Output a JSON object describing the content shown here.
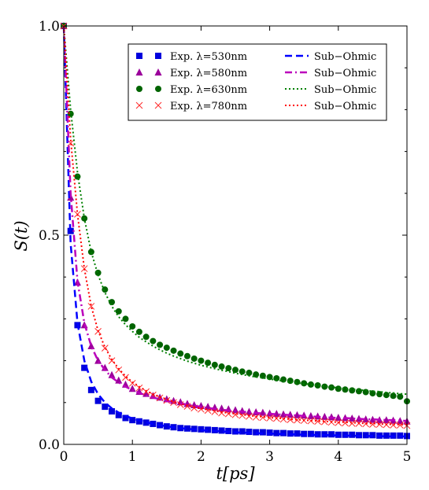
{
  "chart_data": {
    "type": "scatter",
    "xlabel": "t[ps]",
    "ylabel": "S(t)",
    "xlim": [
      0,
      5
    ],
    "ylim": [
      0,
      1
    ],
    "xticks": [
      {
        "v": 0,
        "label": "0"
      },
      {
        "v": 1,
        "label": "1"
      },
      {
        "v": 2,
        "label": "2"
      },
      {
        "v": 3,
        "label": "3"
      },
      {
        "v": 4,
        "label": "4"
      },
      {
        "v": 5,
        "label": "5"
      }
    ],
    "yticks": [
      {
        "v": 0,
        "label": "0.0"
      },
      {
        "v": 0.5,
        "label": "0.5"
      },
      {
        "v": 1,
        "label": "1.0"
      }
    ],
    "grid": false,
    "legend_position": "top-right",
    "x": [
      0.0,
      0.1,
      0.2,
      0.3,
      0.4,
      0.5,
      0.6,
      0.7,
      0.8,
      0.9,
      1.0,
      1.1,
      1.2,
      1.3,
      1.4,
      1.5,
      1.6,
      1.7,
      1.8,
      1.9,
      2.0,
      2.1,
      2.2,
      2.3,
      2.4,
      2.5,
      2.6,
      2.7,
      2.8,
      2.9,
      3.0,
      3.1,
      3.2,
      3.3,
      3.4,
      3.5,
      3.6,
      3.7,
      3.8,
      3.9,
      4.0,
      4.1,
      4.2,
      4.3,
      4.4,
      4.5,
      4.6,
      4.7,
      4.8,
      4.9,
      5.0
    ],
    "series": [
      {
        "name": "Exp. λ=530nm",
        "marker": "square",
        "color": "#0000dd",
        "values": [
          1.0,
          0.51,
          0.285,
          0.183,
          0.13,
          0.104,
          0.09,
          0.079,
          0.07,
          0.063,
          0.058,
          0.055,
          0.052,
          0.049,
          0.046,
          0.043,
          0.041,
          0.039,
          0.038,
          0.037,
          0.036,
          0.035,
          0.034,
          0.033,
          0.032,
          0.031,
          0.031,
          0.03,
          0.029,
          0.029,
          0.028,
          0.027,
          0.027,
          0.026,
          0.026,
          0.025,
          0.025,
          0.024,
          0.024,
          0.024,
          0.023,
          0.023,
          0.023,
          0.022,
          0.022,
          0.022,
          0.021,
          0.021,
          0.021,
          0.021,
          0.02
        ]
      },
      {
        "name": "Exp. λ=580nm",
        "marker": "triangle",
        "color": "#9b009b",
        "values": [
          1.0,
          0.59,
          0.387,
          0.285,
          0.235,
          0.2,
          0.183,
          0.166,
          0.153,
          0.143,
          0.133,
          0.126,
          0.121,
          0.116,
          0.112,
          0.108,
          0.104,
          0.101,
          0.097,
          0.094,
          0.092,
          0.09,
          0.088,
          0.086,
          0.084,
          0.082,
          0.08,
          0.078,
          0.077,
          0.076,
          0.074,
          0.073,
          0.072,
          0.071,
          0.07,
          0.069,
          0.068,
          0.067,
          0.066,
          0.065,
          0.064,
          0.063,
          0.062,
          0.061,
          0.06,
          0.059,
          0.058,
          0.058,
          0.057,
          0.056,
          0.055
        ]
      },
      {
        "name": "Exp. λ=630nm",
        "marker": "circle",
        "color": "#006400",
        "values": [
          1.0,
          0.79,
          0.64,
          0.54,
          0.46,
          0.41,
          0.37,
          0.34,
          0.318,
          0.3,
          0.282,
          0.269,
          0.257,
          0.247,
          0.238,
          0.231,
          0.224,
          0.217,
          0.211,
          0.205,
          0.2,
          0.195,
          0.19,
          0.186,
          0.182,
          0.178,
          0.174,
          0.171,
          0.167,
          0.164,
          0.161,
          0.158,
          0.155,
          0.152,
          0.149,
          0.146,
          0.143,
          0.141,
          0.138,
          0.136,
          0.133,
          0.131,
          0.129,
          0.127,
          0.125,
          0.122,
          0.12,
          0.118,
          0.116,
          0.114,
          0.103
        ]
      },
      {
        "name": "Exp. λ=780nm",
        "marker": "x",
        "color": "#ff2a2a",
        "values": [
          1.0,
          0.72,
          0.55,
          0.42,
          0.33,
          0.27,
          0.23,
          0.2,
          0.178,
          0.16,
          0.146,
          0.135,
          0.126,
          0.118,
          0.111,
          0.105,
          0.1,
          0.095,
          0.091,
          0.087,
          0.084,
          0.081,
          0.078,
          0.075,
          0.073,
          0.071,
          0.069,
          0.067,
          0.065,
          0.064,
          0.063,
          0.062,
          0.06,
          0.059,
          0.058,
          0.057,
          0.056,
          0.055,
          0.054,
          0.053,
          0.052,
          0.051,
          0.05,
          0.05,
          0.049,
          0.048,
          0.048,
          0.047,
          0.046,
          0.046,
          0.045
        ]
      },
      {
        "name": "Sub−Ohmic",
        "style": "dashed",
        "color": "#0000ff",
        "values": [
          1.0,
          0.48,
          0.29,
          0.2,
          0.15,
          0.12,
          0.1,
          0.086,
          0.076,
          0.068,
          0.062,
          0.057,
          0.053,
          0.049,
          0.046,
          0.043,
          0.041,
          0.039,
          0.037,
          0.036,
          0.034,
          0.033,
          0.032,
          0.031,
          0.03,
          0.029,
          0.028,
          0.028,
          0.027,
          0.026,
          0.026,
          0.025,
          0.025,
          0.024,
          0.024,
          0.023,
          0.023,
          0.022,
          0.022,
          0.022,
          0.021,
          0.021,
          0.021,
          0.02,
          0.02,
          0.02,
          0.02,
          0.019,
          0.019,
          0.019,
          0.019
        ]
      },
      {
        "name": "Sub−Ohmic",
        "style": "dashdot",
        "color": "#bb00bb",
        "values": [
          1.0,
          0.6,
          0.39,
          0.29,
          0.235,
          0.2,
          0.178,
          0.16,
          0.148,
          0.138,
          0.13,
          0.123,
          0.117,
          0.112,
          0.108,
          0.104,
          0.101,
          0.098,
          0.095,
          0.092,
          0.09,
          0.087,
          0.085,
          0.083,
          0.081,
          0.08,
          0.078,
          0.077,
          0.075,
          0.074,
          0.073,
          0.072,
          0.071,
          0.07,
          0.069,
          0.068,
          0.067,
          0.066,
          0.065,
          0.064,
          0.063,
          0.063,
          0.062,
          0.061,
          0.06,
          0.06,
          0.059,
          0.058,
          0.058,
          0.057,
          0.056
        ]
      },
      {
        "name": "Sub−Ohmic",
        "style": "dotted",
        "color": "#008000",
        "values": [
          1.0,
          0.8,
          0.65,
          0.54,
          0.46,
          0.405,
          0.363,
          0.33,
          0.305,
          0.286,
          0.27,
          0.256,
          0.245,
          0.235,
          0.226,
          0.218,
          0.211,
          0.205,
          0.199,
          0.194,
          0.189,
          0.185,
          0.181,
          0.177,
          0.174,
          0.17,
          0.167,
          0.164,
          0.161,
          0.159,
          0.156,
          0.154,
          0.151,
          0.149,
          0.147,
          0.145,
          0.143,
          0.141,
          0.139,
          0.137,
          0.135,
          0.133,
          0.132,
          0.13,
          0.129,
          0.127,
          0.126,
          0.124,
          0.123,
          0.121,
          0.12
        ]
      },
      {
        "name": "Sub−Ohmic",
        "style": "dotted",
        "color": "#ff0000",
        "values": [
          1.0,
          0.73,
          0.55,
          0.42,
          0.33,
          0.272,
          0.232,
          0.203,
          0.181,
          0.163,
          0.149,
          0.138,
          0.128,
          0.12,
          0.113,
          0.107,
          0.102,
          0.097,
          0.093,
          0.089,
          0.086,
          0.083,
          0.08,
          0.077,
          0.075,
          0.073,
          0.071,
          0.069,
          0.067,
          0.066,
          0.064,
          0.063,
          0.062,
          0.06,
          0.059,
          0.058,
          0.057,
          0.056,
          0.055,
          0.054,
          0.053,
          0.053,
          0.052,
          0.051,
          0.05,
          0.05,
          0.049,
          0.048,
          0.048,
          0.047,
          0.047
        ]
      }
    ]
  }
}
